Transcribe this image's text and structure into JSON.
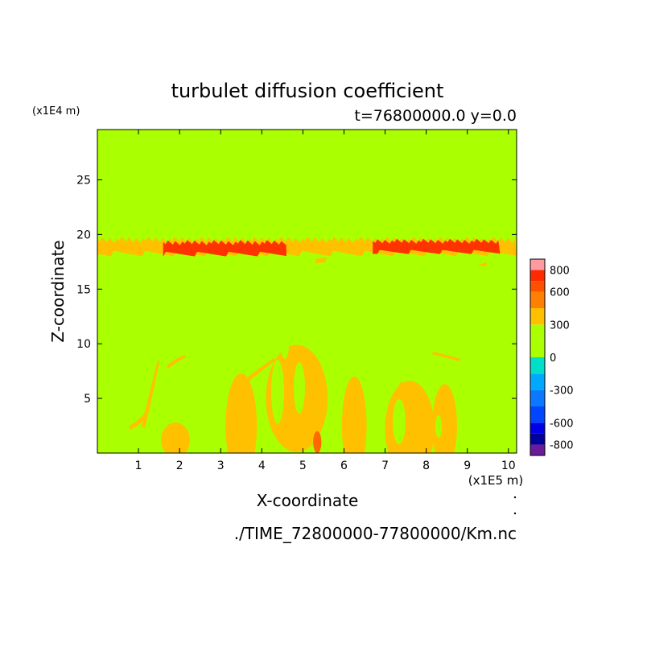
{
  "chart_data": {
    "type": "heatmap",
    "title": "turbulet diffusion coefficient",
    "subtitle": "t=76800000.0 y=0.0",
    "xlabel": "X-coordinate",
    "ylabel": "Z-coordinate",
    "x_unit": "(x1E5 m)",
    "y_unit": "(x1E4 m)",
    "xlim": [
      0,
      10.2
    ],
    "ylim": [
      0,
      29.6
    ],
    "x_ticks": [
      1,
      2,
      3,
      4,
      5,
      6,
      7,
      8,
      9,
      10
    ],
    "y_ticks": [
      5,
      10,
      15,
      20,
      25
    ],
    "background_level": "0",
    "colorbar": {
      "tick_labels": [
        "800",
        "600",
        "300",
        "0",
        "-300",
        "-600",
        "-800"
      ],
      "tick_values": [
        800,
        600,
        300,
        0,
        -300,
        -600,
        -800
      ],
      "levels": [
        {
          "from": -900,
          "to": -800,
          "color": "#6a1b9a"
        },
        {
          "from": -800,
          "to": -700,
          "color": "#00009a"
        },
        {
          "from": -700,
          "to": -600,
          "color": "#0000e6"
        },
        {
          "from": -600,
          "to": -450,
          "color": "#0046ff"
        },
        {
          "from": -450,
          "to": -300,
          "color": "#0a78ff"
        },
        {
          "from": -300,
          "to": -150,
          "color": "#00a8ff"
        },
        {
          "from": -150,
          "to": 0,
          "color": "#00e0c8"
        },
        {
          "from": 0,
          "to": 150,
          "color": "#aaff00"
        },
        {
          "from": 150,
          "to": 300,
          "color": "#aaff00"
        },
        {
          "from": 300,
          "to": 450,
          "color": "#ffc000"
        },
        {
          "from": 450,
          "to": 600,
          "color": "#ff8000"
        },
        {
          "from": 600,
          "to": 700,
          "color": "#ff5000"
        },
        {
          "from": 700,
          "to": 800,
          "color": "#ff2a00"
        },
        {
          "from": 800,
          "to": 900,
          "color": "#ff9aa0"
        }
      ]
    },
    "features": [
      {
        "kind": "band",
        "x": [
          0,
          10.2
        ],
        "z": [
          18,
          19.8
        ],
        "level": 300,
        "color": "#ffc000"
      },
      {
        "kind": "band",
        "x": [
          1.6,
          4.6
        ],
        "z": [
          18,
          19.5
        ],
        "level": 700,
        "color": "#ff3300"
      },
      {
        "kind": "band",
        "x": [
          6.7,
          9.8
        ],
        "z": [
          18.2,
          19.6
        ],
        "level": 700,
        "color": "#ff3300"
      },
      {
        "kind": "blob",
        "cx": 3.5,
        "cz": 2.5,
        "rx": 0.38,
        "rz": 4.8,
        "level": 300,
        "color": "#ffc000"
      },
      {
        "kind": "blob",
        "cx": 4.85,
        "cz": 5.0,
        "rx": 0.75,
        "rz": 4.9,
        "level": 300,
        "color": "#ffc000"
      },
      {
        "kind": "blob",
        "cx": 6.25,
        "cz": 2.5,
        "rx": 0.3,
        "rz": 4.5,
        "level": 300,
        "color": "#ffc000"
      },
      {
        "kind": "blob",
        "cx": 7.6,
        "cz": 2.2,
        "rx": 0.6,
        "rz": 4.4,
        "level": 300,
        "color": "#ffc000"
      },
      {
        "kind": "blob",
        "cx": 8.45,
        "cz": 2.5,
        "rx": 0.3,
        "rz": 3.8,
        "level": 300,
        "color": "#ffc000"
      },
      {
        "kind": "blob",
        "cx": 1.9,
        "cz": 1.2,
        "rx": 0.35,
        "rz": 1.6,
        "level": 300,
        "color": "#ffc000"
      },
      {
        "kind": "blob",
        "cx": 5.35,
        "cz": 1.0,
        "rx": 0.1,
        "rz": 1.0,
        "level": 600,
        "color": "#ff6a00"
      }
    ]
  },
  "caption": "./TIME_72800000-77800000/Km.nc"
}
